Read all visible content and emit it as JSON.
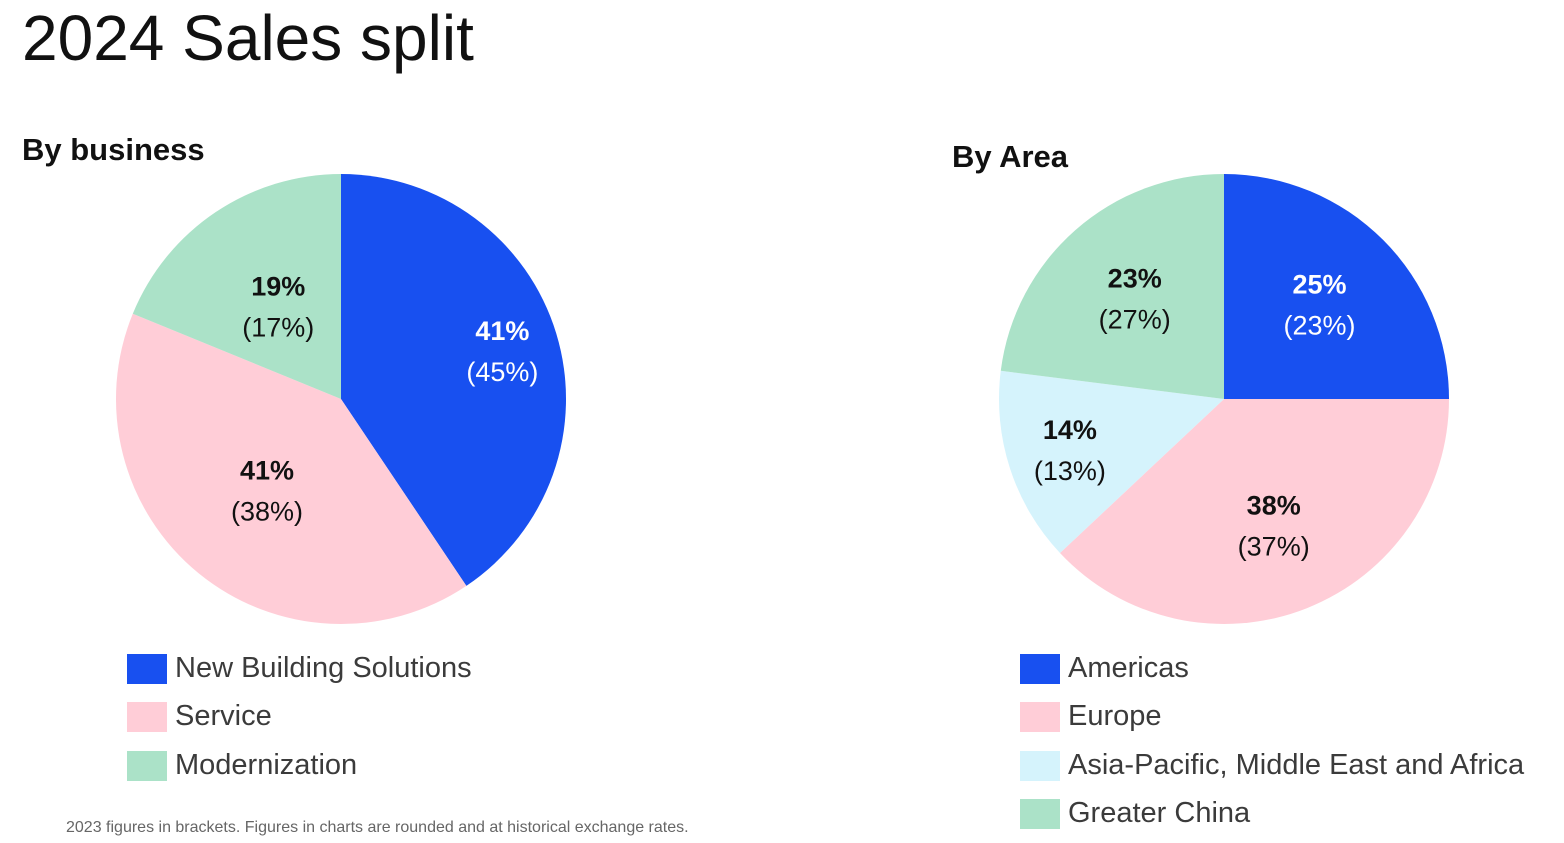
{
  "page": {
    "title": "2024 Sales split"
  },
  "footnote": "2023 figures in brackets. Figures in charts are rounded and at historical exchange rates.",
  "chart_data": [
    {
      "type": "pie",
      "title": "By business",
      "categories": [
        "New Building Solutions",
        "Service",
        "Modernization"
      ],
      "values": [
        41,
        41,
        19
      ],
      "previous_values": [
        45,
        38,
        17
      ],
      "labels": [
        "41%",
        "41%",
        "19%"
      ],
      "previous_labels": [
        "(45%)",
        "(38%)",
        "(17%)"
      ],
      "colors": [
        "#1850f0",
        "#ffcdd7",
        "#abe2c8"
      ],
      "label_colors": [
        "#ffffff",
        "#111111",
        "#111111"
      ],
      "legend_position": "bottom"
    },
    {
      "type": "pie",
      "title": "By Area",
      "categories": [
        "Americas",
        "Europe",
        "Asia-Pacific, Middle East and Africa",
        "Greater China"
      ],
      "values": [
        25,
        38,
        14,
        23
      ],
      "previous_values": [
        23,
        37,
        13,
        27
      ],
      "labels": [
        "25%",
        "38%",
        "14%",
        "23%"
      ],
      "previous_labels": [
        "(23%)",
        "(37%)",
        "(13%)",
        "(27%)"
      ],
      "colors": [
        "#1850f0",
        "#ffcdd7",
        "#d5f3fc",
        "#abe2c8"
      ],
      "label_colors": [
        "#ffffff",
        "#111111",
        "#111111",
        "#111111"
      ],
      "legend_position": "bottom"
    }
  ]
}
